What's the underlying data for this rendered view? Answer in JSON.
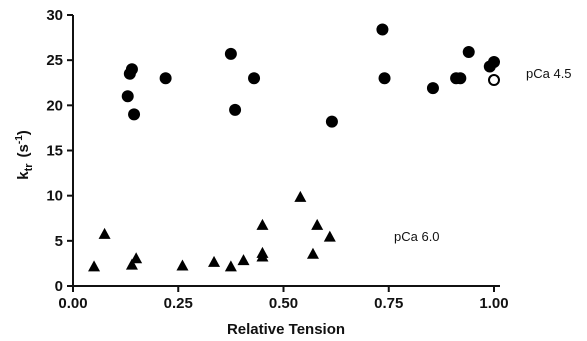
{
  "chart_data": {
    "type": "scatter",
    "xlabel": "Relative Tension",
    "ylabel_main": "k",
    "ylabel_sub": "tr",
    "ylabel_unit_open": "(s",
    "ylabel_unit_sup": "-1",
    "ylabel_unit_close": ")",
    "xlim": [
      0,
      1.0
    ],
    "ylim": [
      0,
      30
    ],
    "x_ticks": [
      0.0,
      0.25,
      0.5,
      0.75,
      1.0
    ],
    "x_tick_labels": [
      "0.00",
      "0.25",
      "0.50",
      "0.75",
      "1.00"
    ],
    "y_ticks": [
      0,
      5,
      10,
      15,
      20,
      25,
      30
    ],
    "y_tick_labels": [
      "0",
      "5",
      "10",
      "15",
      "20",
      "25",
      "30"
    ],
    "grid": false,
    "series": [
      {
        "name": "pCa 4.5",
        "marker": "filled-circle",
        "x": [
          0.13,
          0.135,
          0.14,
          0.145,
          0.22,
          0.375,
          0.385,
          0.43,
          0.615,
          0.735,
          0.74,
          0.855,
          0.91,
          0.92,
          0.94,
          0.99,
          1.0
        ],
        "y": [
          21.0,
          23.5,
          24.0,
          19.0,
          23.0,
          25.7,
          19.5,
          23.0,
          18.2,
          28.4,
          23.0,
          21.9,
          23.0,
          23.0,
          25.9,
          24.3,
          24.8
        ]
      },
      {
        "name": "pCa 4.5 (open)",
        "marker": "open-circle",
        "x": [
          1.0
        ],
        "y": [
          22.8
        ]
      },
      {
        "name": "pCa 6.0",
        "marker": "filled-triangle",
        "x": [
          0.05,
          0.075,
          0.14,
          0.15,
          0.26,
          0.335,
          0.375,
          0.405,
          0.45,
          0.45,
          0.45,
          0.54,
          0.57,
          0.58,
          0.61
        ],
        "y": [
          2.1,
          5.7,
          2.3,
          3.0,
          2.2,
          2.6,
          2.1,
          2.8,
          3.2,
          3.6,
          6.7,
          9.8,
          3.5,
          6.7,
          5.4
        ]
      }
    ],
    "annotations": [
      "pCa 4.5",
      "pCa 6.0"
    ]
  }
}
